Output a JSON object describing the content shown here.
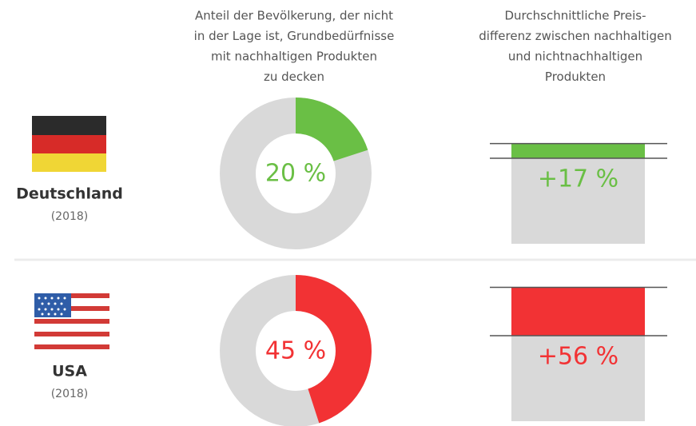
{
  "headers": {
    "share": [
      "Anteil der Bevölkerung, der nicht",
      "in der Lage ist, Grundbedürfnisse",
      "mit nachhaltigen Produkten",
      "zu decken"
    ],
    "price_diff": [
      "Durchschnittliche Preis-",
      "differenz zwischen nachhaltigen",
      "und nichtnachhaltigen",
      "Produkten"
    ]
  },
  "rows": [
    {
      "country": "Deutschland",
      "year": "(2018)",
      "color": "#6abf45",
      "share": {
        "value": 20,
        "label": "20 %"
      },
      "price_diff": {
        "value": 17,
        "label": "+17 %"
      }
    },
    {
      "country": "USA",
      "year": "(2018)",
      "color": "#f23234",
      "share": {
        "value": 45,
        "label": "45 %"
      },
      "price_diff": {
        "value": 56,
        "label": "+56 %"
      }
    }
  ]
}
